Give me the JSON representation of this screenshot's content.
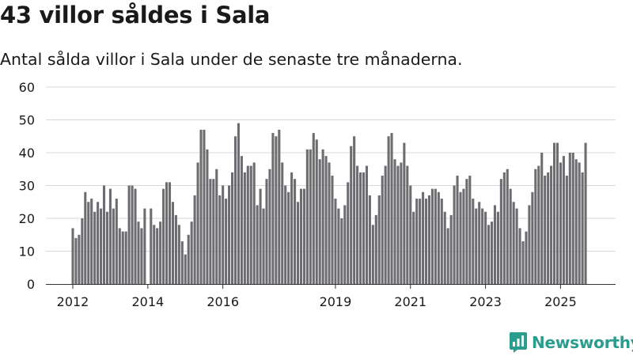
{
  "title": "43 villor såldes i Sala",
  "subtitle": "Antal sålda villor i Sala under de senaste tre månaderna.",
  "brand": {
    "name": "Newsworthy"
  },
  "colors": {
    "bar": "#6d6c70",
    "highlight": "#2a9d8f",
    "grid": "#d9d9d9",
    "text": "#1a1a1a"
  },
  "chart_data": {
    "type": "bar",
    "title": "43 villor såldes i Sala",
    "xlabel": "",
    "ylabel": "",
    "ylim": [
      0,
      60
    ],
    "yticks": [
      0,
      10,
      20,
      30,
      40,
      50,
      60
    ],
    "x_start": "2012-01",
    "x_end": "2025-10",
    "xtick_labels": [
      {
        "label": "2012",
        "at": "2012-01"
      },
      {
        "label": "2014",
        "at": "2014-01"
      },
      {
        "label": "2016",
        "at": "2016-01"
      },
      {
        "label": "2019",
        "at": "2019-01"
      },
      {
        "label": "2021",
        "at": "2021-01"
      },
      {
        "label": "2023",
        "at": "2023-01"
      },
      {
        "label": "2025",
        "at": "2025-01"
      }
    ],
    "annotation": {
      "label": "43",
      "at": "2025-10"
    },
    "series": [
      {
        "name": "Antal sålda villor (rullande tre månader)",
        "values": [
          17,
          14,
          15,
          20,
          28,
          25,
          26,
          22,
          25,
          23,
          30,
          22,
          29,
          23,
          26,
          17,
          16,
          16,
          30,
          30,
          29,
          19,
          17,
          23,
          null,
          23,
          18,
          17,
          19,
          29,
          31,
          31,
          25,
          21,
          18,
          13,
          9,
          15,
          19,
          27,
          37,
          47,
          47,
          41,
          32,
          32,
          35,
          27,
          30,
          26,
          30,
          34,
          45,
          49,
          39,
          34,
          36,
          36,
          37,
          24,
          29,
          23,
          32,
          35,
          46,
          45,
          47,
          37,
          30,
          28,
          34,
          32,
          25,
          29,
          29,
          41,
          41,
          46,
          44,
          38,
          41,
          39,
          37,
          33,
          26,
          23,
          20,
          24,
          31,
          42,
          45,
          36,
          34,
          34,
          36,
          27,
          18,
          21,
          27,
          33,
          36,
          45,
          46,
          38,
          36,
          37,
          43,
          36,
          30,
          22,
          26,
          26,
          28,
          26,
          27,
          29,
          29,
          28,
          26,
          22,
          17,
          21,
          30,
          33,
          28,
          29,
          32,
          33,
          26,
          23,
          25,
          23,
          22,
          18,
          19,
          24,
          22,
          32,
          34,
          35,
          29,
          25,
          23,
          17,
          13,
          16,
          24,
          28,
          35,
          36,
          40,
          33,
          34,
          36,
          43,
          43,
          37,
          39,
          33,
          40,
          40,
          38,
          37,
          34,
          43
        ]
      }
    ]
  }
}
